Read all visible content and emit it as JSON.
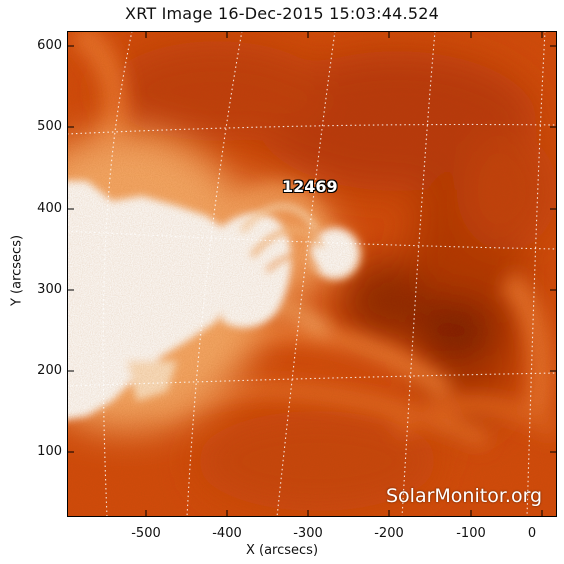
{
  "title": "XRT Image 16-Dec-2015 15:03:44.524",
  "axes": {
    "xlabel": "X (arcsecs)",
    "ylabel": "Y (arcsecs)",
    "x_ticks": [
      "-500",
      "-400",
      "-300",
      "-200",
      "-100",
      "0"
    ],
    "y_ticks": [
      "100",
      "200",
      "300",
      "400",
      "500",
      "600"
    ]
  },
  "region_label": "12469",
  "watermark": "SolarMonitor.org",
  "colors": {
    "background_orange": "#d24a0c",
    "bright_white": "#ffffff",
    "dark_lane": "#8a2006",
    "grid": "#ffffff"
  }
}
